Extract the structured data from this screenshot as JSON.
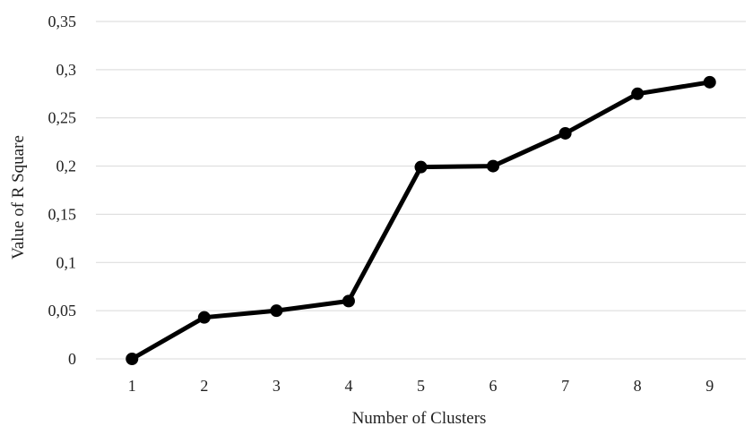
{
  "chart_data": {
    "type": "line",
    "title": "",
    "xlabel": "Number of Clusters",
    "ylabel": "Value of R Square",
    "x": [
      "1",
      "2",
      "3",
      "4",
      "5",
      "6",
      "7",
      "8",
      "9"
    ],
    "series": [
      {
        "values": [
          0,
          0.043,
          0.05,
          0.06,
          0.199,
          0.2,
          0.234,
          0.275,
          0.287
        ]
      }
    ],
    "ylim": [
      0,
      0.35
    ],
    "yticks": [
      "0",
      "0,05",
      "0,1",
      "0,15",
      "0,2",
      "0,25",
      "0,3",
      "0,35"
    ],
    "grid": true,
    "legend": "none",
    "colors": {
      "line": "#000000",
      "marker": "#000000",
      "grid": "#d9d9d9",
      "text": "#222222"
    }
  }
}
